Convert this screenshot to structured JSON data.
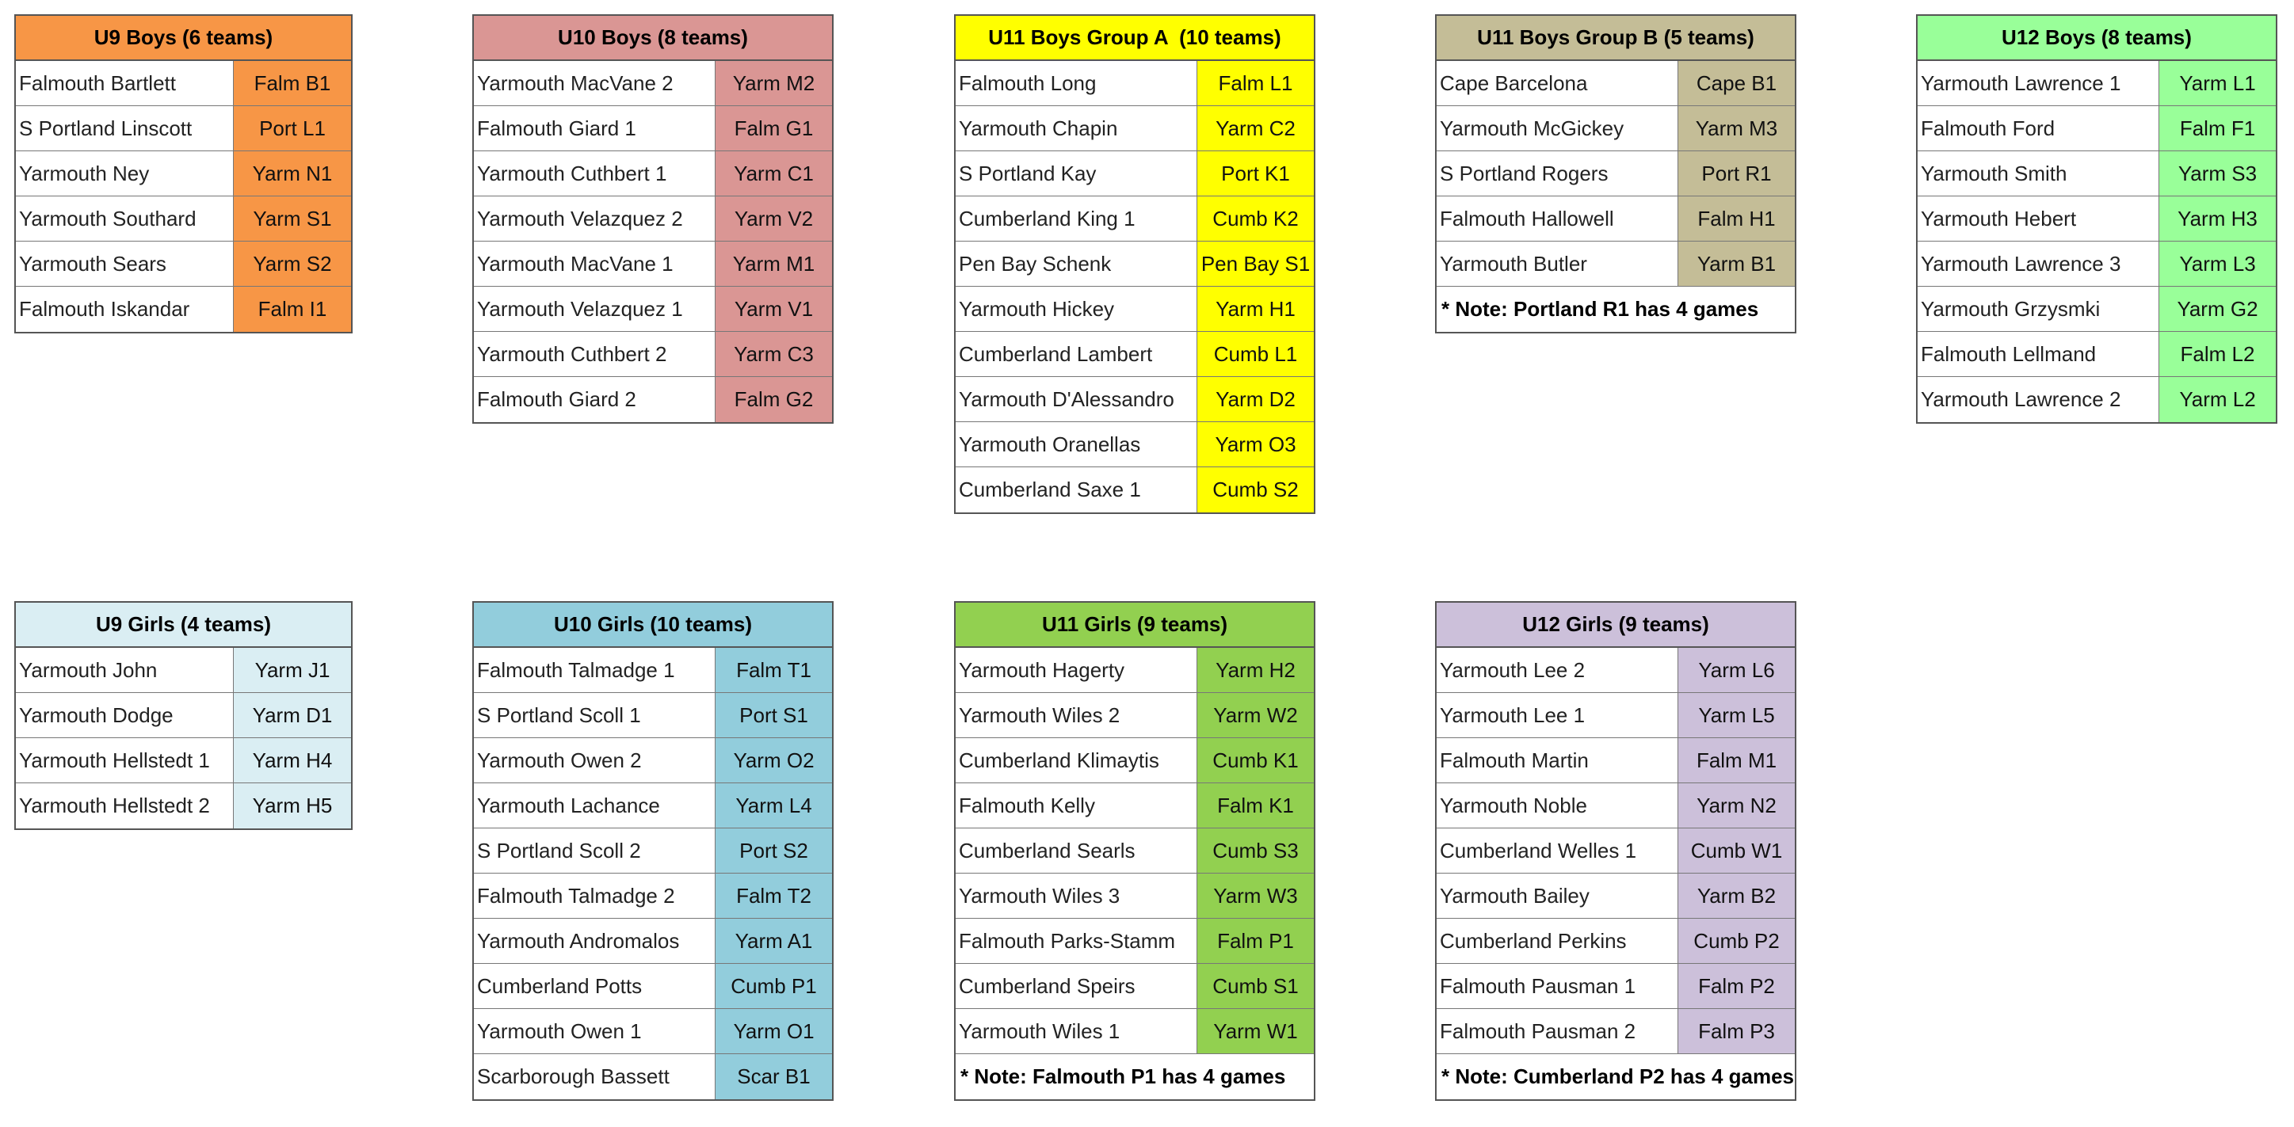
{
  "tables": [
    {
      "title": "U9 Boys (6 teams)",
      "color": "#f79646",
      "rows": [
        [
          "Falmouth Bartlett",
          "Falm B1"
        ],
        [
          "S Portland Linscott",
          "Port L1"
        ],
        [
          "Yarmouth Ney",
          "Yarm N1"
        ],
        [
          "Yarmouth Southard",
          "Yarm S1"
        ],
        [
          "Yarmouth Sears",
          "Yarm S2"
        ],
        [
          "Falmouth Iskandar",
          "Falm I1"
        ]
      ]
    },
    {
      "title": "U10 Boys (8 teams)",
      "color": "#da9694",
      "rows": [
        [
          "Yarmouth MacVane 2",
          "Yarm M2"
        ],
        [
          "Falmouth Giard 1",
          "Falm G1"
        ],
        [
          "Yarmouth Cuthbert 1",
          "Yarm C1"
        ],
        [
          "Yarmouth Velazquez 2",
          "Yarm V2"
        ],
        [
          "Yarmouth MacVane 1",
          "Yarm M1"
        ],
        [
          "Yarmouth Velazquez 1",
          "Yarm V1"
        ],
        [
          "Yarmouth Cuthbert 2",
          "Yarm C3"
        ],
        [
          "Falmouth Giard 2",
          "Falm G2"
        ]
      ]
    },
    {
      "title": "U11 Boys Group A  (10 teams)",
      "color": "#ffff00",
      "rows": [
        [
          "Falmouth Long",
          "Falm L1"
        ],
        [
          "Yarmouth Chapin",
          "Yarm C2"
        ],
        [
          "S Portland Kay",
          "Port K1"
        ],
        [
          "Cumberland King 1",
          "Cumb K2"
        ],
        [
          "Pen Bay Schenk",
          "Pen Bay S1"
        ],
        [
          "Yarmouth Hickey",
          "Yarm H1"
        ],
        [
          "Cumberland Lambert",
          "Cumb L1"
        ],
        [
          "Yarmouth D'Alessandro",
          "Yarm D2"
        ],
        [
          "Yarmouth Oranellas",
          "Yarm O3"
        ],
        [
          "Cumberland Saxe 1",
          "Cumb S2"
        ]
      ]
    },
    {
      "title": "U11 Boys Group B (5 teams)",
      "color": "#c4bd97",
      "rows": [
        [
          "Cape Barcelona",
          "Cape B1"
        ],
        [
          "Yarmouth McGickey",
          "Yarm M3"
        ],
        [
          "S Portland Rogers",
          "Port R1"
        ],
        [
          "Falmouth Hallowell",
          "Falm H1"
        ],
        [
          "Yarmouth Butler",
          "Yarm B1"
        ]
      ],
      "note": "* Note: Portland R1 has 4 games"
    },
    {
      "title": "U12 Boys (8 teams)",
      "color": "#99ff99",
      "rows": [
        [
          "Yarmouth Lawrence 1",
          "Yarm L1"
        ],
        [
          "Falmouth Ford",
          "Falm F1"
        ],
        [
          "Yarmouth Smith",
          "Yarm S3"
        ],
        [
          "Yarmouth Hebert",
          "Yarm H3"
        ],
        [
          "Yarmouth Lawrence 3",
          "Yarm L3"
        ],
        [
          "Yarmouth Grzysmki",
          "Yarm G2"
        ],
        [
          "Falmouth Lellmand",
          "Falm L2"
        ],
        [
          "Yarmouth Lawrence 2",
          "Yarm L2"
        ]
      ]
    },
    {
      "title": "U9 Girls (4 teams)",
      "color": "#daeef3",
      "rows": [
        [
          "Yarmouth John",
          "Yarm J1"
        ],
        [
          "Yarmouth Dodge",
          "Yarm D1"
        ],
        [
          "Yarmouth Hellstedt 1",
          "Yarm H4"
        ],
        [
          "Yarmouth Hellstedt 2",
          "Yarm H5"
        ]
      ]
    },
    {
      "title": "U10 Girls (10 teams)",
      "color": "#92cddc",
      "rows": [
        [
          "Falmouth Talmadge 1",
          "Falm T1"
        ],
        [
          "S Portland Scoll 1",
          "Port S1"
        ],
        [
          "Yarmouth Owen 2",
          "Yarm O2"
        ],
        [
          "Yarmouth Lachance",
          "Yarm L4"
        ],
        [
          "S Portland Scoll 2",
          "Port S2"
        ],
        [
          "Falmouth Talmadge 2",
          "Falm T2"
        ],
        [
          "Yarmouth Andromalos",
          "Yarm A1"
        ],
        [
          "Cumberland Potts",
          "Cumb P1"
        ],
        [
          "Yarmouth Owen 1",
          "Yarm O1"
        ],
        [
          "Scarborough Bassett",
          "Scar B1"
        ]
      ]
    },
    {
      "title": "U11 Girls (9 teams)",
      "color": "#92d050",
      "rows": [
        [
          "Yarmouth Hagerty",
          "Yarm H2"
        ],
        [
          "Yarmouth Wiles 2",
          "Yarm W2"
        ],
        [
          "Cumberland Klimaytis",
          "Cumb K1"
        ],
        [
          "Falmouth Kelly",
          "Falm K1"
        ],
        [
          "Cumberland Searls",
          "Cumb S3"
        ],
        [
          "Yarmouth Wiles 3",
          "Yarm W3"
        ],
        [
          "Falmouth Parks-Stamm",
          "Falm P1"
        ],
        [
          "Cumberland Speirs",
          "Cumb S1"
        ],
        [
          "Yarmouth Wiles 1",
          "Yarm W1"
        ]
      ],
      "note": "* Note: Falmouth P1 has 4 games"
    },
    {
      "title": "U12 Girls (9 teams)",
      "color": "#ccc0da",
      "rows": [
        [
          "Yarmouth Lee 2",
          "Yarm L6"
        ],
        [
          "Yarmouth Lee 1",
          "Yarm L5"
        ],
        [
          "Falmouth Martin",
          "Falm M1"
        ],
        [
          "Yarmouth Noble",
          "Yarm N2"
        ],
        [
          "Cumberland Welles 1",
          "Cumb W1"
        ],
        [
          "Yarmouth Bailey",
          "Yarm B2"
        ],
        [
          "Cumberland Perkins",
          "Cumb P2"
        ],
        [
          "Falmouth Pausman 1",
          "Falm P2"
        ],
        [
          "Falmouth Pausman 2",
          "Falm P3"
        ]
      ],
      "note": "* Note: Cumberland P2 has 4 games"
    }
  ]
}
